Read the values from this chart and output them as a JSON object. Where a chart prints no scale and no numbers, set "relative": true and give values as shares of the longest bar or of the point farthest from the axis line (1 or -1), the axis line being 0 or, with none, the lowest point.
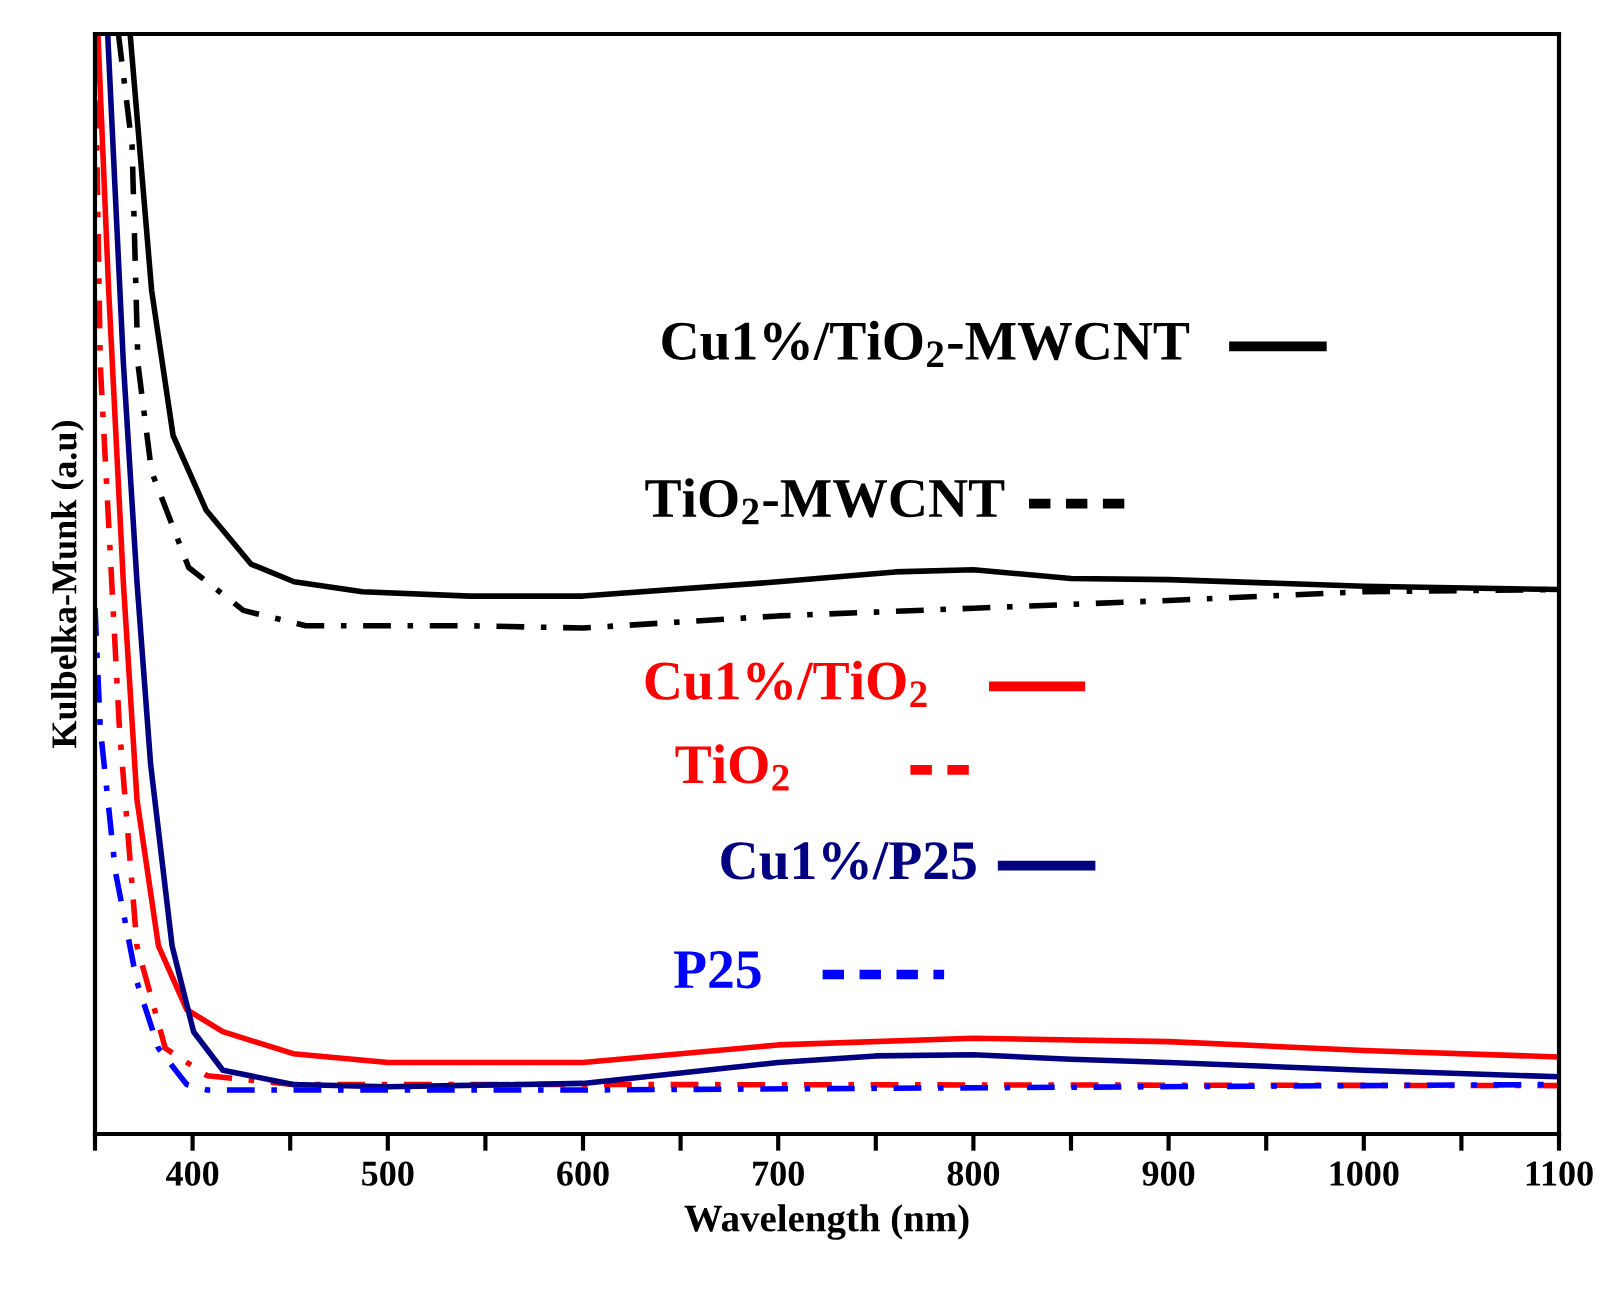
{
  "chart_data": {
    "type": "line",
    "relative": true,
    "xlabel": "Wavelength (nm)",
    "ylabel": "Kulbelka-Munk (a.u)",
    "xlim": [
      350,
      1100
    ],
    "xticks": [
      {
        "value": 350,
        "label": null
      },
      400,
      {
        "value": 450,
        "label": null
      },
      500,
      {
        "value": 550,
        "label": null
      },
      600,
      {
        "value": 650,
        "label": null
      },
      700,
      {
        "value": 750,
        "label": null
      },
      800,
      {
        "value": 850,
        "label": null
      },
      900,
      {
        "value": 950,
        "label": null
      },
      1000,
      {
        "value": 1050,
        "label": null
      },
      1100
    ],
    "grid": false,
    "legend": "right",
    "marker": "none",
    "series": [
      {
        "name": "Cu1%/TiO$_{2}$-MWCNT",
        "color": "#000000",
        "line_style": "solid",
        "x": [
          368,
          379,
          390,
          407,
          430,
          452,
          487,
          542,
          600,
          700,
          760,
          800,
          850,
          900,
          1000,
          1100
        ],
        "values": [
          1.0,
          0.767,
          0.635,
          0.567,
          0.518,
          0.502,
          0.493,
          0.489,
          0.489,
          0.502,
          0.511,
          0.513,
          0.505,
          0.504,
          0.498,
          0.495
        ]
      },
      {
        "name": "TiO$_{2}$-MWCNT",
        "color": "#000000",
        "line_style": "dashed",
        "x": [
          362,
          369,
          372,
          379,
          398,
          426,
          458,
          542,
          600,
          700,
          800,
          900,
          1000,
          1100
        ],
        "values": [
          1.0,
          0.898,
          0.7,
          0.602,
          0.515,
          0.476,
          0.462,
          0.462,
          0.46,
          0.471,
          0.478,
          0.485,
          0.493,
          0.495
        ]
      },
      {
        "name": "Cu1%/TiO$_{2}$",
        "color": "#ff0000",
        "line_style": "solid",
        "x": [
          351.5,
          357,
          364.5,
          371.5,
          382.5,
          397,
          415.5,
          451.5,
          500,
          600,
          700,
          800,
          900,
          1000,
          1100
        ],
        "values": [
          1.0,
          0.767,
          0.502,
          0.304,
          0.171,
          0.113,
          0.093,
          0.073,
          0.065,
          0.065,
          0.081,
          0.087,
          0.084,
          0.076,
          0.07
        ]
      },
      {
        "name": "TiO$_{2}$",
        "color": "#ff0000",
        "line_style": "dashed",
        "x": [
          350,
          352.7,
          362.5,
          371.5,
          386,
          407.5,
          451.5,
          600,
          1100
        ],
        "values": [
          1.0,
          0.7,
          0.369,
          0.171,
          0.078,
          0.053,
          0.045,
          0.045,
          0.044
        ]
      },
      {
        "name": "Cu1%/P25",
        "color": "#000080",
        "line_style": "solid",
        "x": [
          356.5,
          364.5,
          371.5,
          378.5,
          389.5,
          400.5,
          415.5,
          451.5,
          500,
          600,
          700,
          750,
          800,
          850,
          900,
          1000,
          1100
        ],
        "values": [
          1.0,
          0.702,
          0.502,
          0.336,
          0.171,
          0.093,
          0.058,
          0.045,
          0.043,
          0.046,
          0.065,
          0.071,
          0.072,
          0.068,
          0.065,
          0.058,
          0.052
        ]
      },
      {
        "name": "P25",
        "color": "#0000ff",
        "line_style": "dashed",
        "x": [
          350,
          352.7,
          360.5,
          371.5,
          382.5,
          397,
          407.5,
          600,
          1100
        ],
        "values": [
          0.478,
          0.369,
          0.238,
          0.138,
          0.078,
          0.045,
          0.04,
          0.04,
          0.045
        ]
      }
    ]
  }
}
